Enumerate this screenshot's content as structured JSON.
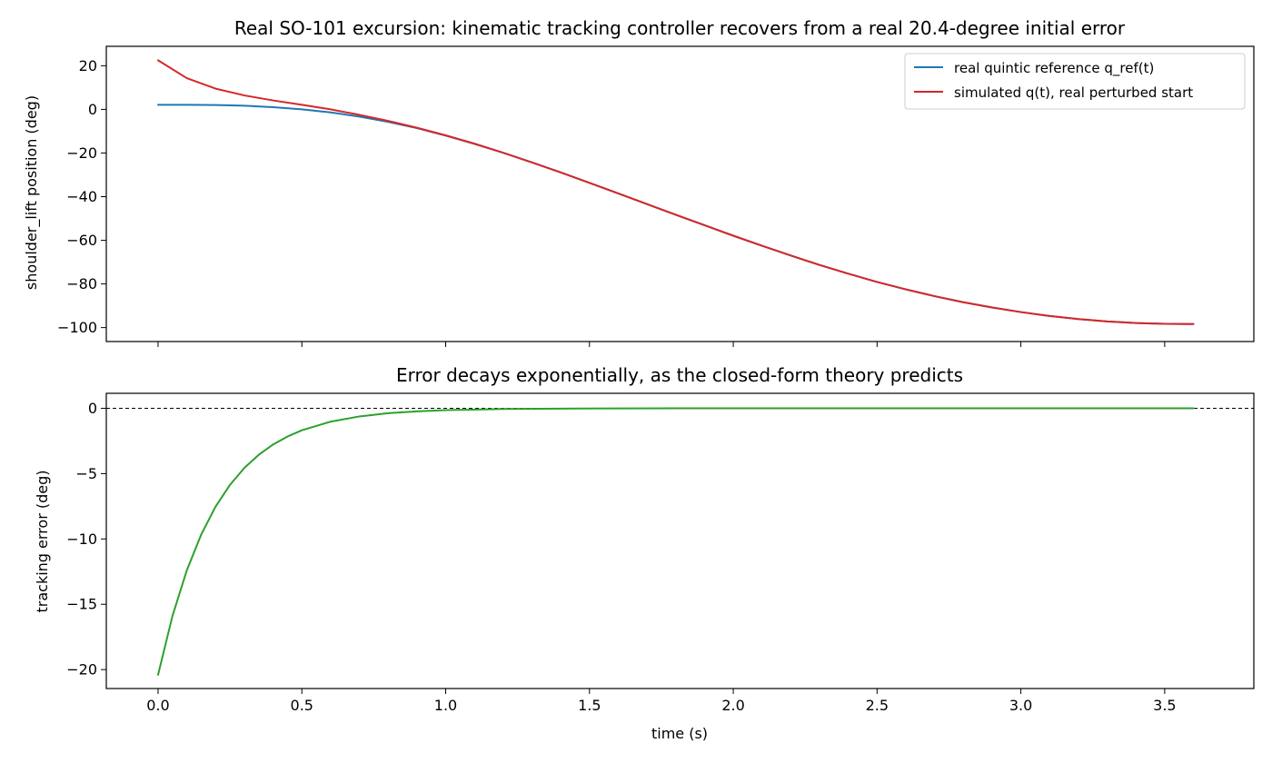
{
  "colors": {
    "reference": "#1f77b4",
    "simulated": "#d62728",
    "error": "#2ca02c",
    "zero_line": "#000000"
  },
  "chart_data": [
    {
      "type": "line",
      "title": "Real SO-101 excursion: kinematic tracking controller recovers from a real 20.4-degree initial error",
      "xlabel": "",
      "ylabel": "shoulder_lift position (deg)",
      "xlim": [
        -0.18,
        3.81
      ],
      "ylim": [
        -106.4,
        28.9
      ],
      "xticks": [
        0.0,
        0.5,
        1.0,
        1.5,
        2.0,
        2.5,
        3.0,
        3.5
      ],
      "yticks": [
        20,
        0,
        -20,
        -40,
        -60,
        -80,
        -100
      ],
      "ytick_labels": [
        "20",
        "0",
        "−20",
        "−40",
        "−60",
        "−80",
        "−100"
      ],
      "legend": "top-right",
      "series": [
        {
          "name": "real quintic reference q_ref(t)",
          "color": "#1f77b4",
          "x": [
            0,
            0.1,
            0.2,
            0.3,
            0.4,
            0.5,
            0.6,
            0.7,
            0.8,
            0.9,
            1.0,
            1.1,
            1.2,
            1.3,
            1.4,
            1.5,
            1.6,
            1.7,
            1.8,
            1.9,
            2.0,
            2.1,
            2.2,
            2.3,
            2.4,
            2.5,
            2.6,
            2.7,
            2.8,
            2.9,
            3.0,
            3.1,
            3.2,
            3.3,
            3.4,
            3.5,
            3.6
          ],
          "y": [
            2.1,
            2.1,
            2.0,
            1.7,
            1.0,
            0.0,
            -1.4,
            -3.3,
            -5.7,
            -8.6,
            -12.0,
            -15.8,
            -19.9,
            -24.3,
            -28.9,
            -33.7,
            -38.5,
            -43.4,
            -48.3,
            -53.1,
            -57.9,
            -62.5,
            -67.0,
            -71.3,
            -75.3,
            -79.1,
            -82.5,
            -85.6,
            -88.4,
            -90.8,
            -92.9,
            -94.7,
            -96.1,
            -97.2,
            -97.9,
            -98.3,
            -98.4
          ]
        },
        {
          "name": "simulated q(t), real perturbed start",
          "color": "#d62728",
          "x": [
            0,
            0.1,
            0.2,
            0.3,
            0.4,
            0.5,
            0.6,
            0.7,
            0.8,
            0.9,
            1.0,
            1.1,
            1.2,
            1.3,
            1.4,
            1.5,
            1.6,
            1.7,
            1.8,
            1.9,
            2.0,
            2.1,
            2.2,
            2.3,
            2.4,
            2.5,
            2.6,
            2.7,
            2.8,
            2.9,
            3.0,
            3.1,
            3.2,
            3.3,
            3.4,
            3.5,
            3.6
          ],
          "y": [
            22.5,
            14.3,
            9.5,
            6.4,
            4.1,
            2.1,
            0.0,
            -2.5,
            -5.3,
            -8.4,
            -11.9,
            -15.7,
            -19.9,
            -24.3,
            -28.9,
            -33.7,
            -38.5,
            -43.4,
            -48.3,
            -53.1,
            -57.9,
            -62.5,
            -67.0,
            -71.3,
            -75.3,
            -79.1,
            -82.5,
            -85.6,
            -88.4,
            -90.8,
            -92.9,
            -94.7,
            -96.1,
            -97.2,
            -97.9,
            -98.3,
            -98.4
          ]
        }
      ]
    },
    {
      "type": "line",
      "title": "Error decays exponentially, as the closed-form theory predicts",
      "xlabel": "time (s)",
      "ylabel": "tracking error (deg)",
      "xlim": [
        -0.18,
        3.81
      ],
      "ylim": [
        -21.45,
        1.15
      ],
      "xticks": [
        0.0,
        0.5,
        1.0,
        1.5,
        2.0,
        2.5,
        3.0,
        3.5
      ],
      "xtick_labels": [
        "0.0",
        "0.5",
        "1.0",
        "1.5",
        "2.0",
        "2.5",
        "3.0",
        "3.5"
      ],
      "yticks": [
        0,
        -5,
        -10,
        -15,
        -20
      ],
      "ytick_labels": [
        "0",
        "−5",
        "−10",
        "−15",
        "−20"
      ],
      "reference_line": {
        "y": 0,
        "style": "dashed"
      },
      "series": [
        {
          "color": "#2ca02c",
          "x": [
            0,
            0.05,
            0.1,
            0.15,
            0.2,
            0.25,
            0.3,
            0.35,
            0.4,
            0.45,
            0.5,
            0.6,
            0.7,
            0.8,
            0.9,
            1.0,
            1.2,
            1.4,
            1.6,
            1.8,
            2.0,
            2.5,
            3.0,
            3.5,
            3.6
          ],
          "y": [
            -20.4,
            -15.9,
            -12.4,
            -9.66,
            -7.52,
            -5.86,
            -4.56,
            -3.56,
            -2.77,
            -2.16,
            -1.68,
            -1.02,
            -0.62,
            -0.37,
            -0.23,
            -0.14,
            -0.05,
            -0.02,
            -0.01,
            0.0,
            0.0,
            0.0,
            0.0,
            0.0,
            0.0
          ]
        }
      ]
    }
  ]
}
